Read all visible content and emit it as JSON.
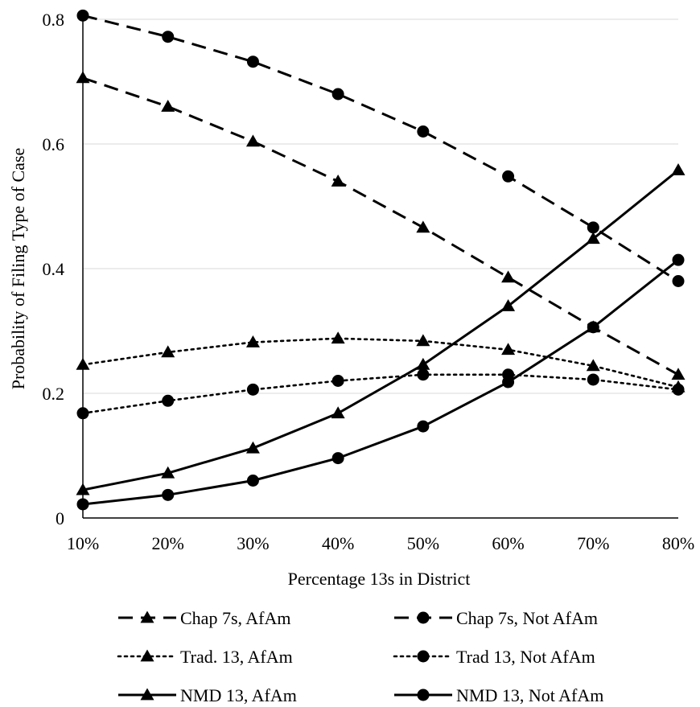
{
  "chart_data": {
    "type": "line",
    "title": "",
    "xlabel": "Percentage 13s in District",
    "ylabel": "Probability of Filing Type of Case",
    "categories": [
      "10%",
      "20%",
      "30%",
      "40%",
      "50%",
      "60%",
      "70%",
      "80%"
    ],
    "yticks": [
      "0",
      "0.2",
      "0.4",
      "0.6",
      "0.8"
    ],
    "ylim": [
      0,
      0.8
    ],
    "grid": true,
    "legend_position": "bottom",
    "series": [
      {
        "name": "Chap 7s, AfAm",
        "values": [
          0.706,
          0.66,
          0.604,
          0.54,
          0.466,
          0.386,
          0.306,
          0.23
        ],
        "marker": "triangle",
        "dash": "dashed"
      },
      {
        "name": "Chap 7s, Not AfAm",
        "values": [
          0.806,
          0.772,
          0.732,
          0.68,
          0.62,
          0.548,
          0.466,
          0.38
        ],
        "marker": "circle",
        "dash": "dashed"
      },
      {
        "name": "Trad. 13, AfAm",
        "values": [
          0.246,
          0.266,
          0.282,
          0.288,
          0.284,
          0.27,
          0.244,
          0.21
        ],
        "marker": "triangle",
        "dash": "dotted"
      },
      {
        "name": "Trad 13, Not AfAm",
        "values": [
          0.168,
          0.188,
          0.206,
          0.22,
          0.23,
          0.23,
          0.222,
          0.206
        ],
        "marker": "circle",
        "dash": "dotted"
      },
      {
        "name": "NMD 13, AfAm",
        "values": [
          0.045,
          0.072,
          0.112,
          0.168,
          0.246,
          0.34,
          0.448,
          0.558
        ],
        "marker": "triangle",
        "dash": "solid"
      },
      {
        "name": "NMD 13, Not AfAm",
        "values": [
          0.022,
          0.037,
          0.06,
          0.096,
          0.147,
          0.218,
          0.306,
          0.414
        ],
        "marker": "circle",
        "dash": "solid"
      }
    ]
  }
}
